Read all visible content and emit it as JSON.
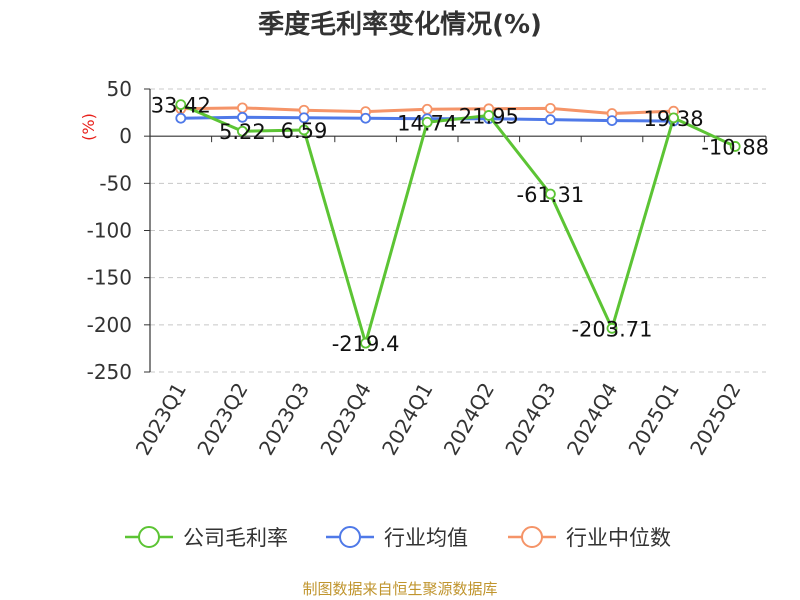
{
  "title": "季度毛利率变化情况(%)",
  "source": "制图数据来自恒生聚源数据库",
  "chart_data": {
    "type": "line",
    "title": "季度毛利率变化情况(%)",
    "ylabel": "(%)",
    "ylim": [
      -250,
      50
    ],
    "yticks": [
      50,
      0,
      -50,
      -100,
      -150,
      -200,
      -250
    ],
    "grid": true,
    "legend_position": "bottom",
    "categories": [
      "2023Q1",
      "2023Q2",
      "2023Q3",
      "2023Q4",
      "2024Q1",
      "2024Q2",
      "2024Q3",
      "2024Q4",
      "2025Q1",
      "2025Q2"
    ],
    "series": [
      {
        "name": "公司毛利率",
        "color": "#5cc434",
        "values": [
          33.42,
          5.22,
          6.59,
          -219.4,
          14.74,
          21.95,
          -61.31,
          -203.71,
          19.38,
          -10.88
        ],
        "labels": [
          "33.42",
          "5.22",
          "6.59",
          "-219.4",
          "14.74",
          "21.95",
          "-61.31",
          "-203.71",
          "19.38",
          "-10.88"
        ]
      },
      {
        "name": "行业均值",
        "color": "#4f79e8",
        "values": [
          19,
          20,
          19.5,
          19,
          18.5,
          18.5,
          17.5,
          16.5,
          16,
          null
        ]
      },
      {
        "name": "行业中位数",
        "color": "#f59468",
        "values": [
          29,
          30,
          27.5,
          26,
          28.5,
          29,
          29.5,
          24,
          26.5,
          null
        ]
      }
    ]
  }
}
